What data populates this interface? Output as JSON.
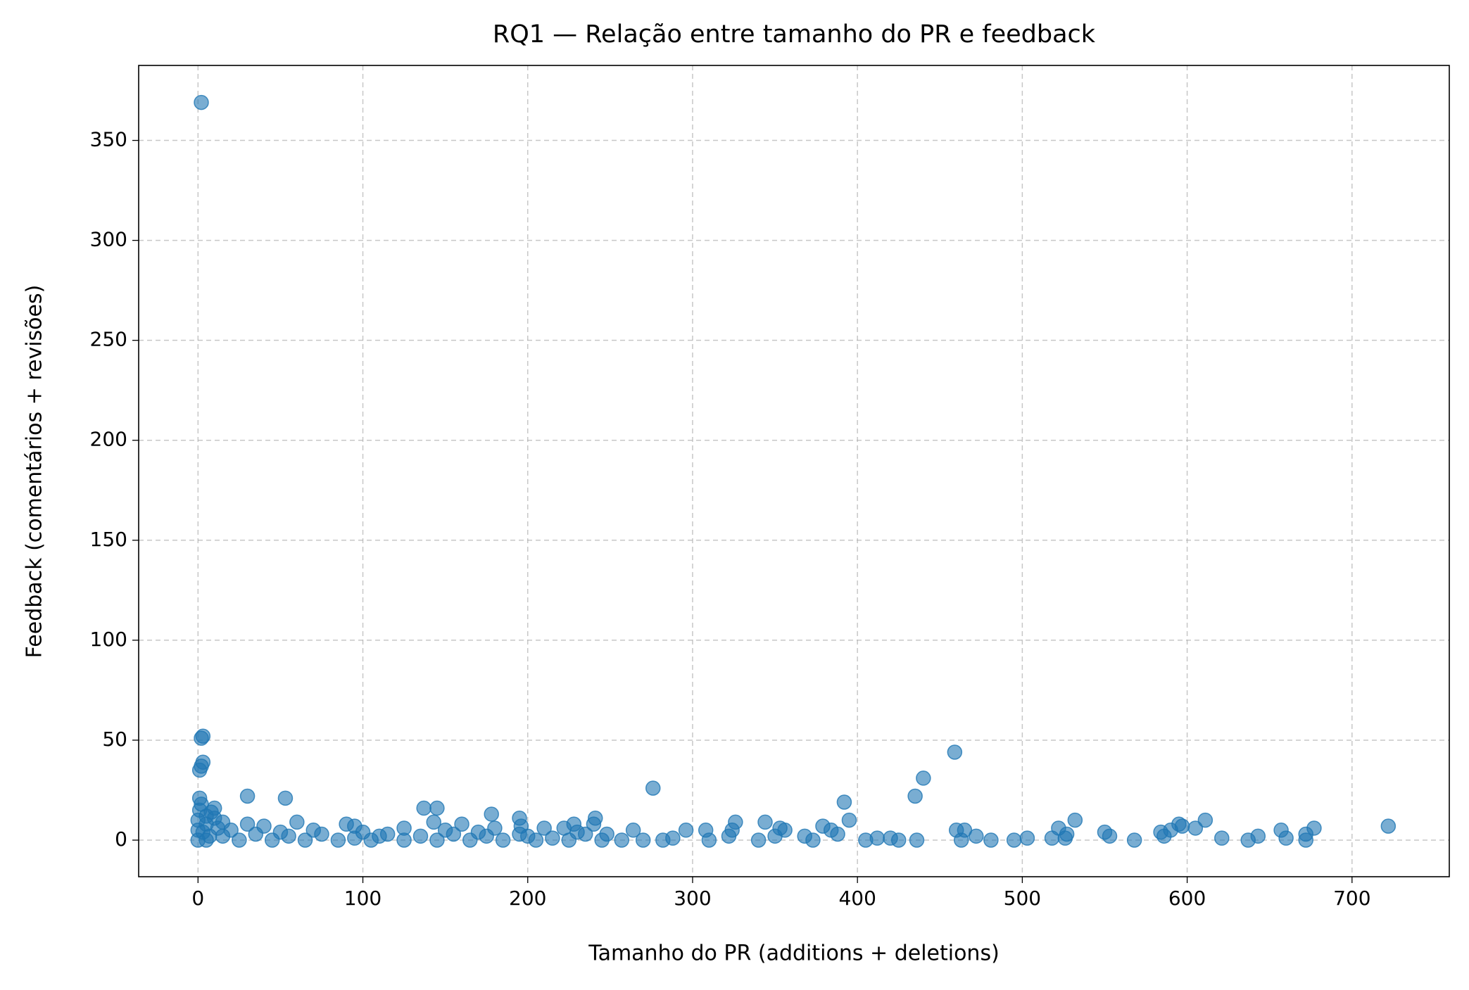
{
  "chart_data": {
    "type": "scatter",
    "title": "RQ1 — Relação entre tamanho do PR e feedback",
    "x_label": "Tamanho do PR (additions + deletions)",
    "y_label": "Feedback (comentários + revisões)",
    "x": [
      2,
      3,
      2,
      3,
      2,
      1,
      1,
      2,
      1,
      30,
      53,
      10,
      137,
      145,
      178,
      195,
      241,
      276,
      392,
      395,
      435,
      440,
      459,
      722,
      611,
      532,
      677,
      657,
      672,
      672,
      660,
      643,
      637,
      621,
      605,
      597,
      595,
      590,
      584,
      586,
      568,
      553,
      550,
      526,
      527,
      522,
      518,
      503,
      495,
      481,
      472,
      465,
      460,
      463,
      436,
      425,
      420,
      412,
      405,
      388,
      384,
      379,
      373,
      368,
      356,
      353,
      350,
      344,
      340,
      326,
      324,
      322,
      310,
      308,
      296,
      288,
      282,
      270,
      264,
      257,
      248,
      240,
      228,
      222,
      210,
      196,
      180,
      160,
      143,
      125,
      95,
      90,
      60,
      40,
      30,
      15,
      10,
      5,
      0,
      5,
      8,
      0,
      0,
      5,
      15,
      25,
      35,
      45,
      55,
      65,
      75,
      85,
      95,
      105,
      115,
      125,
      135,
      145,
      155,
      165,
      175,
      185,
      195,
      205,
      215,
      225,
      235,
      245,
      20,
      50,
      70,
      100,
      110,
      150,
      170,
      200,
      230,
      12,
      3,
      7
    ],
    "values": [
      369,
      52,
      51,
      39,
      37,
      35,
      21,
      18,
      15,
      22,
      21,
      16,
      16,
      16,
      13,
      11,
      11,
      26,
      19,
      10,
      22,
      31,
      44,
      7,
      10,
      10,
      6,
      5,
      0,
      3,
      1,
      2,
      0,
      1,
      6,
      7,
      8,
      5,
      4,
      2,
      0,
      2,
      4,
      1,
      3,
      6,
      1,
      1,
      0,
      0,
      2,
      5,
      5,
      0,
      0,
      0,
      1,
      1,
      0,
      3,
      5,
      7,
      0,
      2,
      5,
      6,
      2,
      9,
      0,
      9,
      5,
      2,
      0,
      5,
      5,
      1,
      0,
      0,
      5,
      0,
      3,
      8,
      8,
      6,
      6,
      7,
      6,
      8,
      9,
      6,
      7,
      8,
      9,
      7,
      8,
      9,
      11,
      8,
      10,
      12,
      14,
      5,
      0,
      0,
      2,
      0,
      3,
      0,
      2,
      0,
      3,
      0,
      1,
      0,
      3,
      0,
      2,
      0,
      3,
      0,
      2,
      0,
      3,
      0,
      1,
      0,
      3,
      0,
      5,
      4,
      5,
      4,
      2,
      5,
      4,
      2,
      4,
      6,
      4,
      2
    ],
    "color": "#1f77b4",
    "xlim": [
      -36,
      759
    ],
    "ylim": [
      -18.3,
      387.5
    ],
    "xticks": [
      0,
      100,
      200,
      300,
      400,
      500,
      600,
      700
    ],
    "yticks": [
      0,
      50,
      100,
      150,
      200,
      250,
      300,
      350
    ],
    "grid": true
  }
}
